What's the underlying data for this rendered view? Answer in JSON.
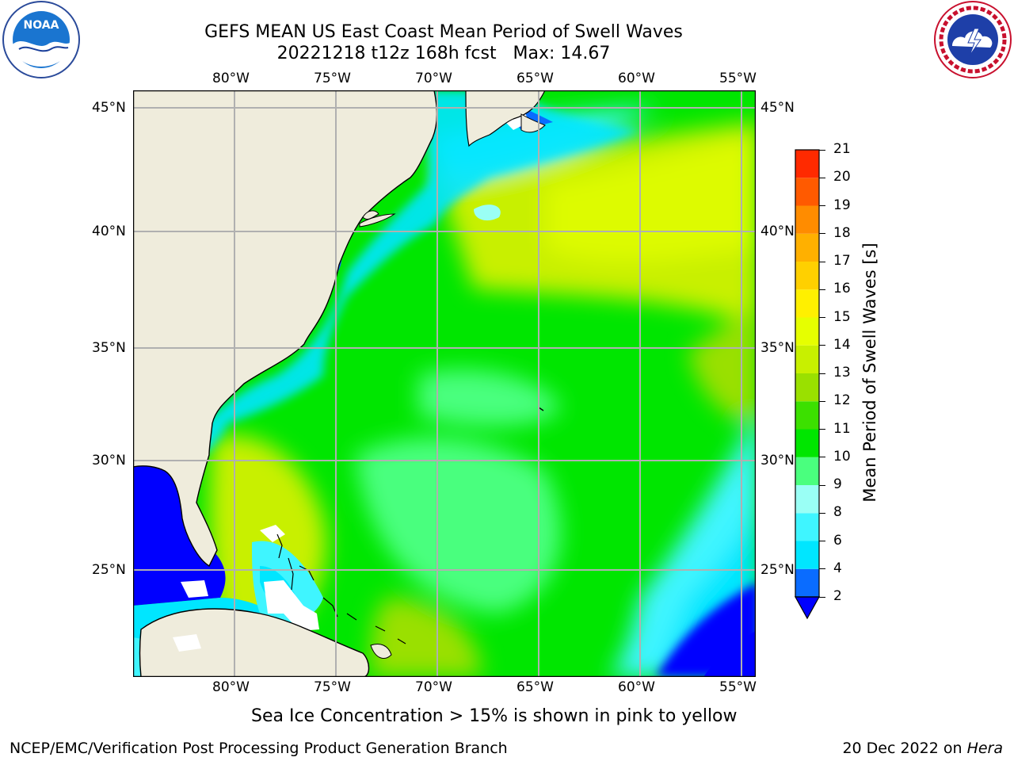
{
  "title": {
    "line1": "GEFS MEAN US East Coast Mean Period of Swell Waves",
    "line2": "20221218 t12z 168h fcst   Max: 14.67"
  },
  "map": {
    "lon_labels": [
      "80°W",
      "75°W",
      "70°W",
      "65°W",
      "60°W",
      "55°W"
    ],
    "lat_labels": [
      "45°N",
      "40°N",
      "35°N",
      "30°N",
      "25°N"
    ],
    "colors": {
      "land": "#efecdc",
      "grid": "#b0b0b0",
      "coast": "#000000",
      "ice_mask": "#ffffff"
    }
  },
  "colorbar": {
    "label": "Mean Period of Swell Waves [s]",
    "ticks": [
      "2",
      "4",
      "6",
      "8",
      "9",
      "10",
      "11",
      "12",
      "13",
      "14",
      "15",
      "16",
      "17",
      "18",
      "19",
      "20",
      "21"
    ],
    "colors": [
      "#0a6cff",
      "#00e6ff",
      "#3ff5ff",
      "#9afff5",
      "#4aff7e",
      "#00e600",
      "#3ce000",
      "#9ae000",
      "#c8f000",
      "#e6ff00",
      "#fff000",
      "#ffd000",
      "#ffb000",
      "#ff8c00",
      "#ff5a00",
      "#ff2a00"
    ],
    "under_color": "#0000ff"
  },
  "caption": "Sea Ice Concentration > 15% is shown in pink to yellow",
  "footer": {
    "left": "NCEP/EMC/Verification Post Processing Product Generation Branch",
    "right_prefix": "20 Dec 2022 on ",
    "right_host": "Hera"
  },
  "logos": {
    "noaa_text": "NOAA",
    "nws_text": "NATIONAL WEATHER SERVICE"
  }
}
